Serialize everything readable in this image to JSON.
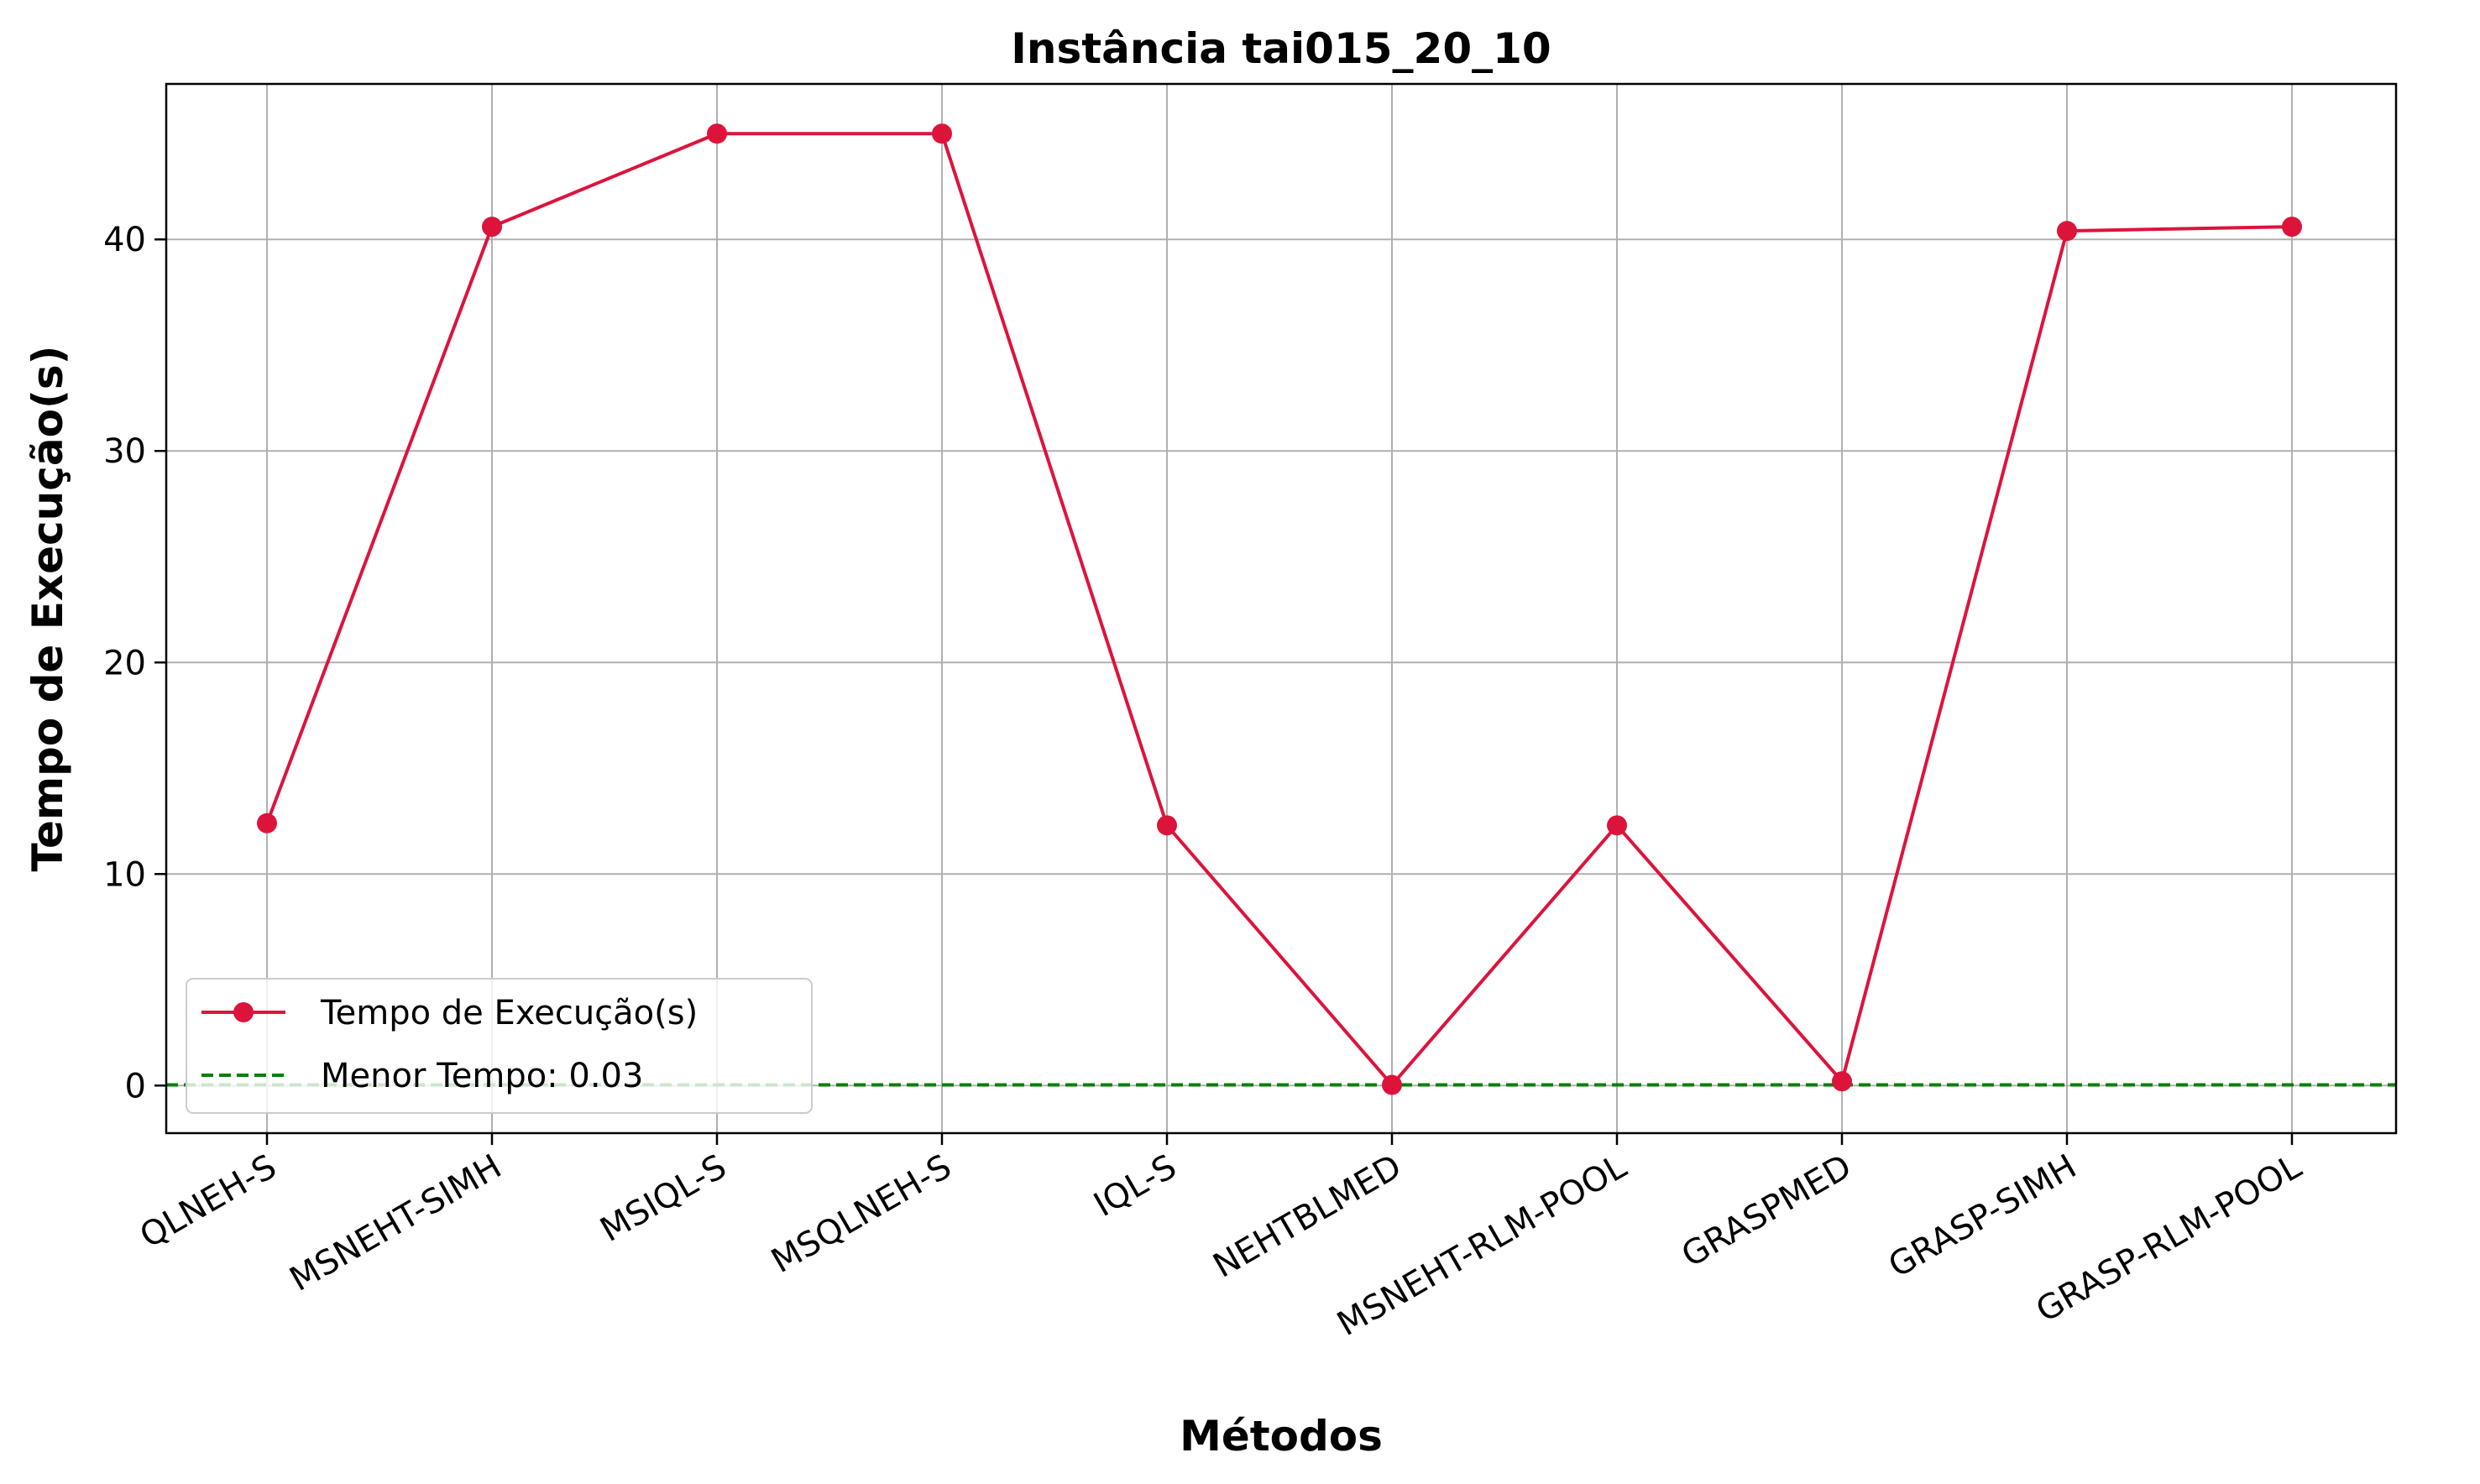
{
  "chart_data": {
    "type": "line",
    "title": "Instância tai015_20_10",
    "xlabel": "Métodos",
    "ylabel": "Tempo de Execução(s)",
    "categories": [
      "QLNEH-S",
      "MSNEHT-SIMH",
      "MSIQL-S",
      "MSQLNEH-S",
      "IQL-S",
      "NEHTBLMED",
      "MSNEHT-RLM-POOL",
      "GRASPMED",
      "GRASP-SIMH",
      "GRASP-RLM-POOL"
    ],
    "series": [
      {
        "name": "Tempo de Execução(s)",
        "color": "#dc143c",
        "values": [
          12.4,
          40.6,
          45.0,
          45.0,
          12.3,
          0.03,
          12.3,
          0.2,
          40.4,
          40.6
        ]
      }
    ],
    "reference_line": {
      "label": "Menor Tempo: 0.03",
      "value": 0.03,
      "color": "#008000",
      "style": "dashed"
    },
    "ylim": [
      -2.25,
      47.35
    ],
    "yticks": [
      "0",
      "10",
      "20",
      "30",
      "40"
    ],
    "ytick_values": [
      0,
      10,
      20,
      30,
      40
    ],
    "grid": true,
    "legend_position": "lower-left"
  }
}
